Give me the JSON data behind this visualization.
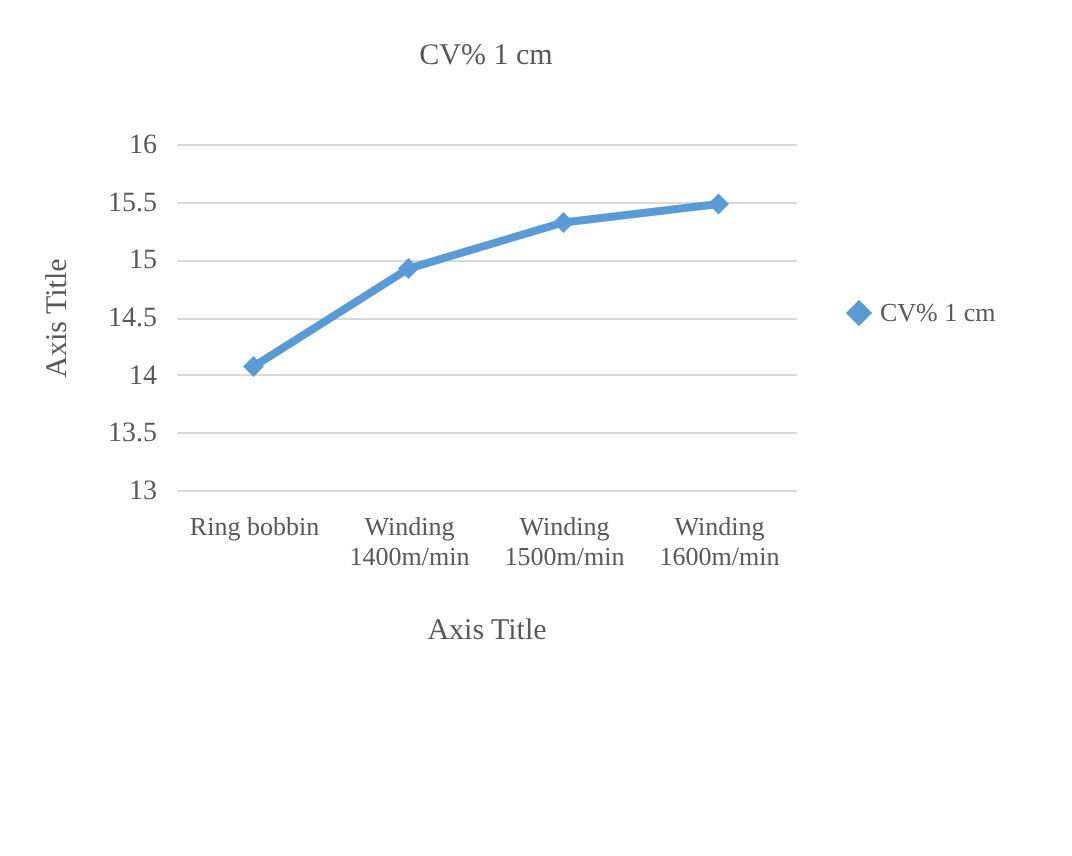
{
  "chart_data": {
    "type": "line",
    "title": "CV% 1 cm",
    "xlabel": "Axis Title",
    "ylabel": "Axis Title",
    "categories": [
      "Ring bobbin",
      "Winding 1400m/min",
      "Winding 1500m/min",
      "Winding 1600m/min"
    ],
    "series": [
      {
        "name": "CV% 1 cm",
        "color": "#5b9bd5",
        "values": [
          14.07,
          14.92,
          15.32,
          15.48
        ]
      }
    ],
    "ylim": [
      13,
      16
    ],
    "yticks": [
      13,
      13.5,
      14,
      14.5,
      15,
      15.5,
      16
    ],
    "grid": "y",
    "legend": "right",
    "marker": "diamond",
    "line_style": "solid"
  }
}
